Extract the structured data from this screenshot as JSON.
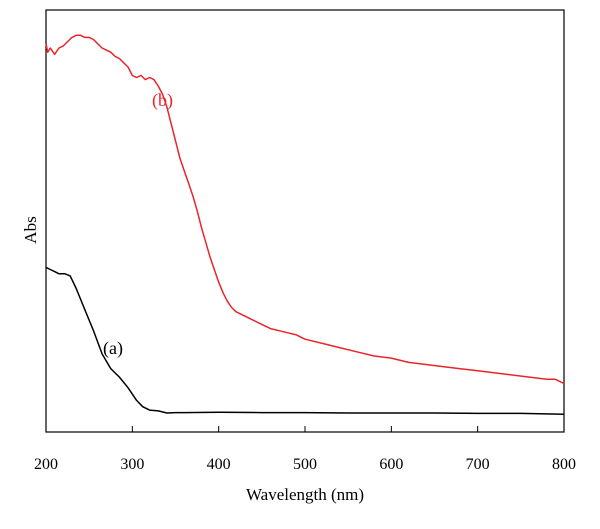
{
  "chart_data": {
    "type": "line",
    "title": "",
    "xlabel": "Wavelength (nm)",
    "ylabel": "Abs",
    "xlim": [
      200,
      800
    ],
    "ylim": [
      0,
      1
    ],
    "x_ticks": [
      "200",
      "300",
      "400",
      "500",
      "600",
      "700",
      "800"
    ],
    "y_ticks_labeled": false,
    "grid": false,
    "legend": "none",
    "series": [
      {
        "name": "(a)",
        "color": "#000000",
        "points": [
          [
            200,
            0.39
          ],
          [
            205,
            0.385
          ],
          [
            210,
            0.38
          ],
          [
            215,
            0.375
          ],
          [
            222,
            0.375
          ],
          [
            228,
            0.37
          ],
          [
            235,
            0.34
          ],
          [
            245,
            0.29
          ],
          [
            255,
            0.24
          ],
          [
            265,
            0.185
          ],
          [
            275,
            0.15
          ],
          [
            285,
            0.13
          ],
          [
            295,
            0.105
          ],
          [
            305,
            0.075
          ],
          [
            312,
            0.06
          ],
          [
            320,
            0.052
          ],
          [
            330,
            0.05
          ],
          [
            340,
            0.045
          ],
          [
            350,
            0.046
          ],
          [
            360,
            0.046
          ],
          [
            400,
            0.047
          ],
          [
            450,
            0.046
          ],
          [
            500,
            0.046
          ],
          [
            550,
            0.045
          ],
          [
            600,
            0.045
          ],
          [
            650,
            0.045
          ],
          [
            700,
            0.044
          ],
          [
            750,
            0.044
          ],
          [
            800,
            0.042
          ]
        ]
      },
      {
        "name": "(b)",
        "color": "#e8252a",
        "points": [
          [
            200,
            0.92
          ],
          [
            202,
            0.9
          ],
          [
            205,
            0.91
          ],
          [
            210,
            0.895
          ],
          [
            215,
            0.91
          ],
          [
            220,
            0.915
          ],
          [
            225,
            0.925
          ],
          [
            230,
            0.935
          ],
          [
            235,
            0.94
          ],
          [
            240,
            0.94
          ],
          [
            245,
            0.935
          ],
          [
            250,
            0.935
          ],
          [
            255,
            0.93
          ],
          [
            260,
            0.92
          ],
          [
            265,
            0.91
          ],
          [
            270,
            0.905
          ],
          [
            275,
            0.9
          ],
          [
            280,
            0.89
          ],
          [
            285,
            0.885
          ],
          [
            290,
            0.875
          ],
          [
            295,
            0.865
          ],
          [
            300,
            0.845
          ],
          [
            305,
            0.84
          ],
          [
            310,
            0.845
          ],
          [
            315,
            0.835
          ],
          [
            320,
            0.84
          ],
          [
            325,
            0.835
          ],
          [
            330,
            0.82
          ],
          [
            335,
            0.8
          ],
          [
            340,
            0.77
          ],
          [
            345,
            0.73
          ],
          [
            350,
            0.69
          ],
          [
            355,
            0.65
          ],
          [
            360,
            0.62
          ],
          [
            365,
            0.59
          ],
          [
            370,
            0.56
          ],
          [
            375,
            0.525
          ],
          [
            380,
            0.485
          ],
          [
            385,
            0.45
          ],
          [
            390,
            0.415
          ],
          [
            395,
            0.385
          ],
          [
            400,
            0.355
          ],
          [
            405,
            0.33
          ],
          [
            410,
            0.31
          ],
          [
            415,
            0.295
          ],
          [
            420,
            0.285
          ],
          [
            430,
            0.275
          ],
          [
            440,
            0.265
          ],
          [
            450,
            0.255
          ],
          [
            460,
            0.245
          ],
          [
            470,
            0.24
          ],
          [
            480,
            0.235
          ],
          [
            490,
            0.23
          ],
          [
            500,
            0.22
          ],
          [
            520,
            0.21
          ],
          [
            540,
            0.2
          ],
          [
            560,
            0.19
          ],
          [
            580,
            0.18
          ],
          [
            600,
            0.175
          ],
          [
            620,
            0.165
          ],
          [
            640,
            0.16
          ],
          [
            660,
            0.155
          ],
          [
            680,
            0.15
          ],
          [
            700,
            0.145
          ],
          [
            720,
            0.14
          ],
          [
            740,
            0.135
          ],
          [
            760,
            0.13
          ],
          [
            780,
            0.125
          ],
          [
            790,
            0.125
          ],
          [
            800,
            0.115
          ]
        ]
      }
    ]
  }
}
